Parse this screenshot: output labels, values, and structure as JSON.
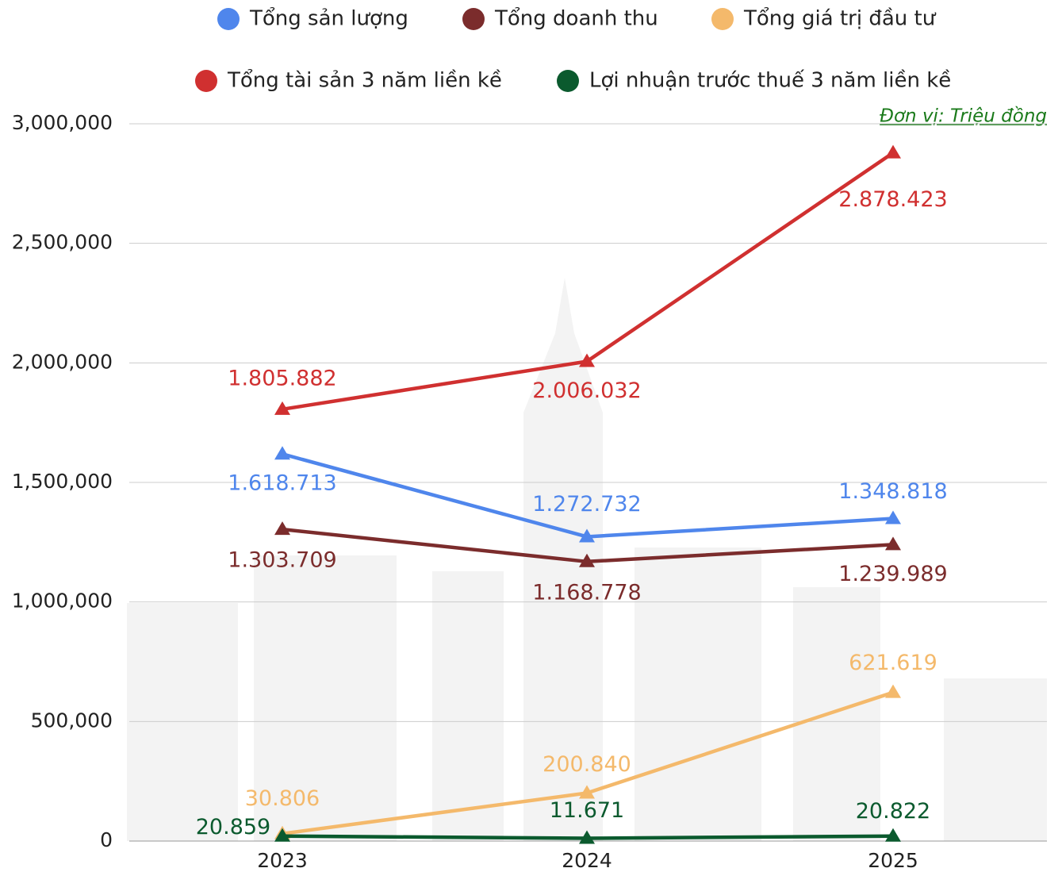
{
  "chart_data": {
    "type": "line",
    "annotation": "Đơn vị: Triệu đồng",
    "categories": [
      "2023",
      "2024",
      "2025"
    ],
    "series": [
      {
        "name": "Tổng sản lượng",
        "color": "#4f86ec",
        "values": [
          1618713,
          1272732,
          1348818
        ],
        "value_labels": [
          "1.618.713",
          "1.272.732",
          "1.348.818"
        ]
      },
      {
        "name": "Tổng doanh thu",
        "color": "#7b2c2c",
        "values": [
          1303709,
          1168778,
          1239989
        ],
        "value_labels": [
          "1.303.709",
          "1.168.778",
          "1.239.989"
        ]
      },
      {
        "name": "Tổng giá trị đầu tư",
        "color": "#f4b96b",
        "values": [
          30806,
          200840,
          621619
        ],
        "value_labels": [
          "30.806",
          "200.840",
          "621.619"
        ]
      },
      {
        "name": "Tổng tài sản 3 năm liền kề",
        "color": "#d03030",
        "values": [
          1805882,
          2006032,
          2878423
        ],
        "value_labels": [
          "1.805.882",
          "2.006.032",
          "2.878.423"
        ]
      },
      {
        "name": "Lợi nhuận trước thuế 3 năm liền kề",
        "color": "#0b5a2e",
        "values": [
          20859,
          11671,
          20822
        ],
        "value_labels": [
          "20.859",
          "11.671",
          "20.822"
        ]
      }
    ],
    "ylim": [
      0,
      3000000
    ],
    "yticks": [
      0,
      {
        "value": 500000,
        "label": "500,000"
      },
      {
        "value": 1000000,
        "label": "1,000,000"
      },
      {
        "value": 1500000,
        "label": "1,500,000"
      },
      {
        "value": 2000000,
        "label": "2,000,000"
      },
      {
        "value": 2500000,
        "label": "2,500,000"
      },
      {
        "value": 3000000,
        "label": "3,000,000"
      }
    ],
    "grid": true
  }
}
